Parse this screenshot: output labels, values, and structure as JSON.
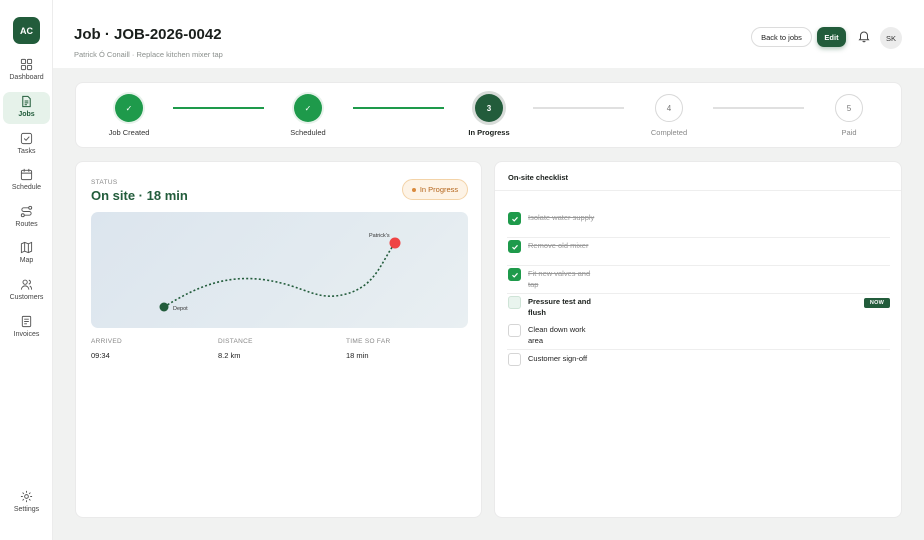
{
  "app": {
    "logo_text": "AC"
  },
  "sidebar": {
    "items": [
      {
        "label": "Dashboard",
        "icon": "dashboard-icon"
      },
      {
        "label": "Jobs",
        "icon": "jobs-icon",
        "active": true
      },
      {
        "label": "Tasks",
        "icon": "tasks-icon"
      },
      {
        "label": "Schedule",
        "icon": "calendar-icon"
      },
      {
        "label": "Routes",
        "icon": "routes-icon"
      },
      {
        "label": "Map",
        "icon": "map-icon"
      },
      {
        "label": "Customers",
        "icon": "customers-icon"
      },
      {
        "label": "Invoices",
        "icon": "invoices-icon"
      }
    ],
    "settings_label": "Settings"
  },
  "header": {
    "title": "Job · JOB-2026-0042",
    "subtitle": "Patrick Ó Conaill · Replace kitchen mixer tap",
    "back_label": "Back to jobs",
    "edit_label": "Edit",
    "avatar_initials": "SK"
  },
  "stepper": {
    "steps": [
      {
        "label": "Job Created",
        "state": "done",
        "marker": "✓"
      },
      {
        "label": "Scheduled",
        "state": "done",
        "marker": "✓"
      },
      {
        "label": "In Progress",
        "state": "current",
        "marker": "3"
      },
      {
        "label": "Completed",
        "state": "todo",
        "marker": "4"
      },
      {
        "label": "Paid",
        "state": "todo",
        "marker": "5"
      }
    ]
  },
  "status": {
    "caption": "STATUS",
    "value": "On site · 18 min",
    "badge": "In Progress",
    "map": {
      "start_label": "Depot",
      "end_label": "Patrick's"
    },
    "stats": [
      {
        "label": "ARRIVED",
        "value": "09:34"
      },
      {
        "label": "DISTANCE",
        "value": "8.2 km"
      },
      {
        "label": "TIME SO FAR",
        "value": "18 min"
      }
    ]
  },
  "checklist": {
    "title": "On-site checklist",
    "now_badge": "NOW",
    "items": [
      {
        "label": "Isolate water supply",
        "state": "done"
      },
      {
        "label": "Remove old mixer",
        "state": "done"
      },
      {
        "label": "Fit new valves and tap",
        "state": "done"
      },
      {
        "label": "Pressure test and flush",
        "state": "current"
      },
      {
        "label": "Clean down work area",
        "state": "todo"
      },
      {
        "label": "Customer sign-off",
        "state": "todo"
      }
    ]
  },
  "colors": {
    "brand": "#225c3b",
    "success": "#1e9a4b",
    "badge_bg": "#fdf3e6",
    "badge_text": "#b4651c",
    "map_end": "#ef4444"
  }
}
